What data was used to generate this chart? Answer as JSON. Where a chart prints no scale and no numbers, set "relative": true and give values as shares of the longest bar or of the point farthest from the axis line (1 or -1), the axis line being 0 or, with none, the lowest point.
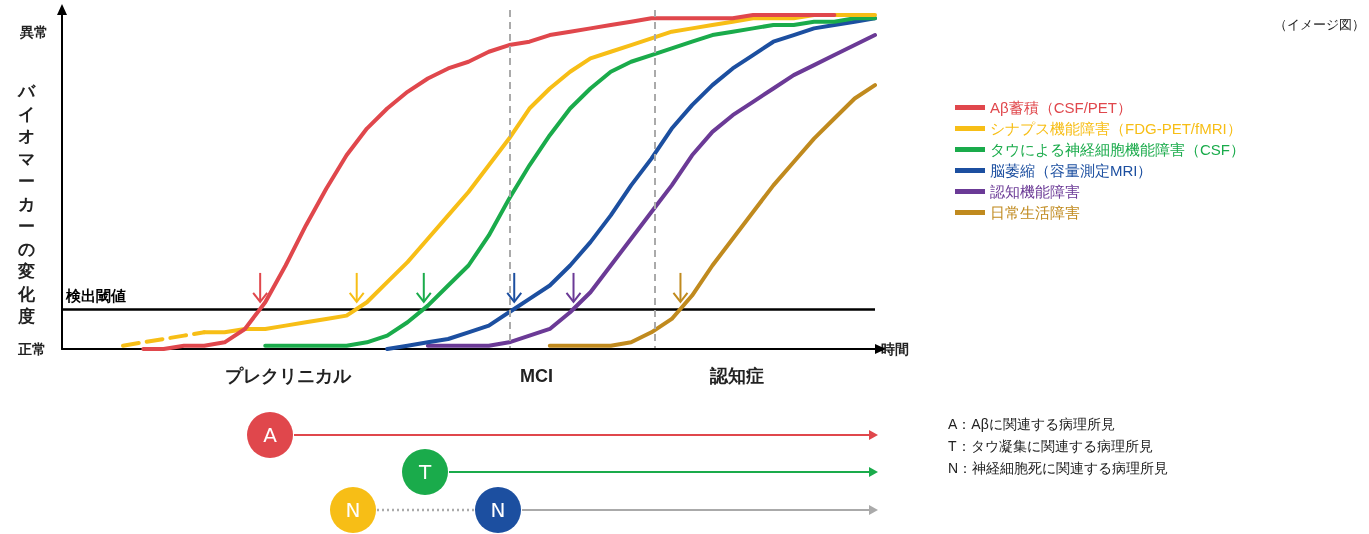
{
  "chart_data": {
    "type": "line",
    "relative": true,
    "xlabel": "時間",
    "ylabel": "バイオマーカーの変化度",
    "grid": false,
    "legend": "right",
    "categories": [
      null,
      null,
      null,
      null,
      null,
      null,
      null,
      null,
      null,
      null,
      null,
      null,
      null,
      null,
      null,
      null,
      null,
      null,
      null,
      null,
      null,
      null,
      null,
      null,
      null,
      null,
      null,
      null,
      null,
      null,
      null,
      null,
      null,
      null,
      null,
      null,
      null,
      null,
      null,
      null,
      null
    ],
    "series": [
      {
        "name": "Aβ蓄積（CSF/PET）",
        "color": "#e0474c",
        "line_style": "solid",
        "values": [
          null,
          null,
          null,
          null,
          0,
          0,
          0.01,
          0.01,
          0.02,
          0.06,
          0.14,
          0.25,
          0.37,
          0.48,
          0.58,
          0.66,
          0.72,
          0.77,
          0.81,
          0.84,
          0.86,
          0.89,
          0.91,
          0.92,
          0.94,
          0.95,
          0.96,
          0.97,
          0.98,
          0.99,
          0.99,
          0.99,
          0.99,
          0.99,
          1,
          1,
          1,
          1,
          1,
          null,
          null
        ]
      },
      {
        "name": "シナプス機能障害（FDG-PET/fMRI）",
        "color": "#f7be16",
        "line_style": "solid",
        "values": [
          null,
          null,
          null,
          null,
          null,
          null,
          null,
          0.05,
          0.05,
          0.06,
          0.06,
          0.07,
          0.08,
          0.09,
          0.1,
          0.14,
          0.2,
          0.26,
          0.33,
          0.4,
          0.47,
          0.55,
          0.63,
          0.72,
          0.78,
          0.83,
          0.87,
          0.89,
          0.91,
          0.93,
          0.95,
          0.96,
          0.97,
          0.98,
          0.99,
          0.99,
          0.99,
          1,
          1,
          1,
          1
        ]
      },
      {
        "color": "#f7be16",
        "line_style": "dashed",
        "values": [
          null,
          null,
          null,
          0.01,
          0.02,
          0.03,
          0.04,
          0.05,
          null,
          null,
          null,
          null,
          null,
          null,
          null,
          null,
          null,
          null,
          null,
          null,
          null,
          null,
          null,
          null,
          null,
          null,
          null,
          null,
          null,
          null,
          null,
          null,
          null,
          null,
          null,
          null,
          null,
          null,
          null,
          null,
          null
        ]
      },
      {
        "name": "タウによる神経細胞機能障害（CSF）",
        "color": "#1aab4b",
        "line_style": "solid",
        "values": [
          null,
          null,
          null,
          null,
          null,
          null,
          null,
          null,
          null,
          null,
          0.01,
          0.01,
          0.01,
          0.01,
          0.01,
          0.02,
          0.04,
          0.08,
          0.13,
          0.19,
          0.25,
          0.34,
          0.45,
          0.55,
          0.64,
          0.72,
          0.78,
          0.83,
          0.86,
          0.88,
          0.9,
          0.92,
          0.94,
          0.95,
          0.96,
          0.97,
          0.97,
          0.98,
          0.98,
          0.99,
          0.99
        ]
      },
      {
        "name": "脳萎縮（容量測定MRI）",
        "color": "#1c4fa0",
        "line_style": "solid",
        "values": [
          null,
          null,
          null,
          null,
          null,
          null,
          null,
          null,
          null,
          null,
          null,
          null,
          null,
          null,
          null,
          null,
          0,
          0.01,
          0.02,
          0.03,
          0.05,
          0.07,
          0.11,
          0.15,
          0.19,
          0.25,
          0.32,
          0.4,
          0.49,
          0.57,
          0.66,
          0.73,
          0.79,
          0.84,
          0.88,
          0.92,
          0.94,
          0.96,
          0.97,
          0.98,
          0.99
        ]
      },
      {
        "name": "認知機能障害",
        "color": "#6b3a96",
        "line_style": "solid",
        "values": [
          null,
          null,
          null,
          null,
          null,
          null,
          null,
          null,
          null,
          null,
          null,
          null,
          null,
          null,
          null,
          null,
          null,
          null,
          0.01,
          0.01,
          0.01,
          0.01,
          0.02,
          0.04,
          0.06,
          0.11,
          0.17,
          0.25,
          0.33,
          0.41,
          0.49,
          0.58,
          0.65,
          0.7,
          0.74,
          0.78,
          0.82,
          0.85,
          0.88,
          0.91,
          0.94
        ]
      },
      {
        "name": "日常生活障害",
        "color": "#c08a1e",
        "line_style": "solid",
        "values": [
          null,
          null,
          null,
          null,
          null,
          null,
          null,
          null,
          null,
          null,
          null,
          null,
          null,
          null,
          null,
          null,
          null,
          null,
          null,
          null,
          null,
          null,
          null,
          null,
          0.01,
          0.01,
          0.01,
          0.01,
          0.02,
          0.05,
          0.09,
          0.16,
          0.25,
          0.33,
          0.41,
          0.49,
          0.56,
          0.63,
          0.69,
          0.75,
          0.79
        ]
      }
    ],
    "ref_lines": [
      {
        "axis": "y",
        "value": 0.12,
        "label": "検出閾値",
        "color": "#000000",
        "line_style": "solid"
      }
    ],
    "annotations": [
      "（イメージ図）",
      "異常",
      "正常",
      "プレクリニカル",
      "MCI",
      "認知症",
      "A",
      "T",
      "N",
      "N",
      "A：Aβに関連する病理所見",
      "T：タウ凝集に関連する病理所見",
      "N：神経細胞死に関連する病理所見"
    ]
  }
}
